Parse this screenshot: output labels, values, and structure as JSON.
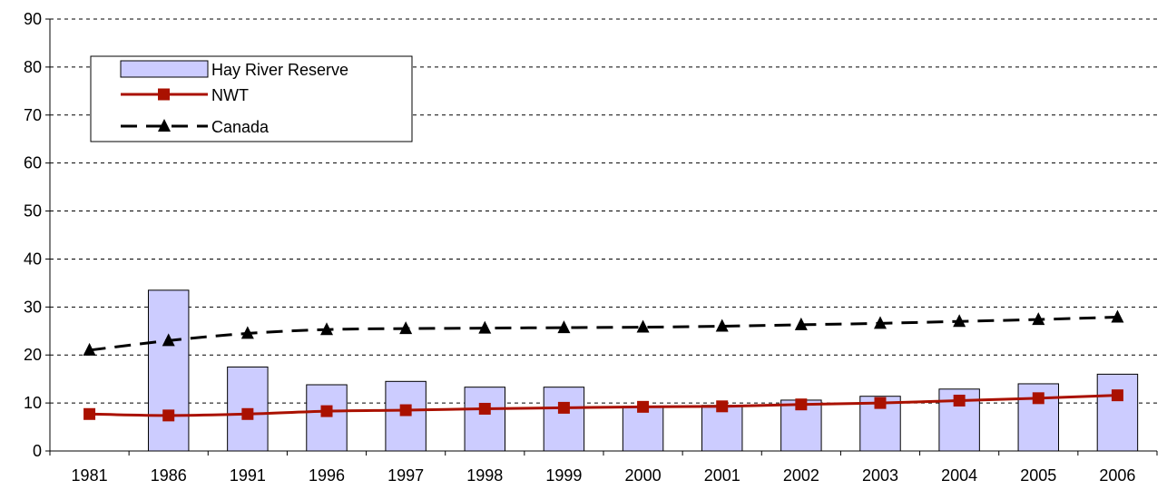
{
  "chart_data": {
    "type": "bar",
    "title": "",
    "xlabel": "",
    "ylabel": "",
    "categories": [
      "1981",
      "1986",
      "1991",
      "1996",
      "1997",
      "1998",
      "1999",
      "2000",
      "2001",
      "2002",
      "2003",
      "2004",
      "2005",
      "2006"
    ],
    "ylim": [
      0,
      90
    ],
    "yticks": [
      0,
      10,
      20,
      30,
      40,
      50,
      60,
      70,
      80,
      90
    ],
    "grid": true,
    "legend_position": "top-left",
    "series": [
      {
        "name": "Hay River Reserve",
        "kind": "bar",
        "color": "#ccccff",
        "values": [
          null,
          33.5,
          17.5,
          13.8,
          14.5,
          13.3,
          13.3,
          9.3,
          9.5,
          10.6,
          11.4,
          12.9,
          14.0,
          16.0
        ]
      },
      {
        "name": "NWT",
        "kind": "line",
        "color": "#aa1100",
        "marker": "square",
        "values": [
          7.7,
          7.4,
          7.7,
          8.3,
          8.5,
          8.8,
          9.0,
          9.2,
          9.3,
          9.7,
          10.0,
          10.5,
          11.0,
          11.6
        ]
      },
      {
        "name": "Canada",
        "kind": "line",
        "color": "#000000",
        "marker": "triangle",
        "dashed": true,
        "values": [
          21.0,
          23.0,
          24.5,
          25.3,
          25.5,
          25.6,
          25.7,
          25.8,
          26.0,
          26.3,
          26.6,
          27.0,
          27.4,
          27.9
        ]
      }
    ]
  }
}
